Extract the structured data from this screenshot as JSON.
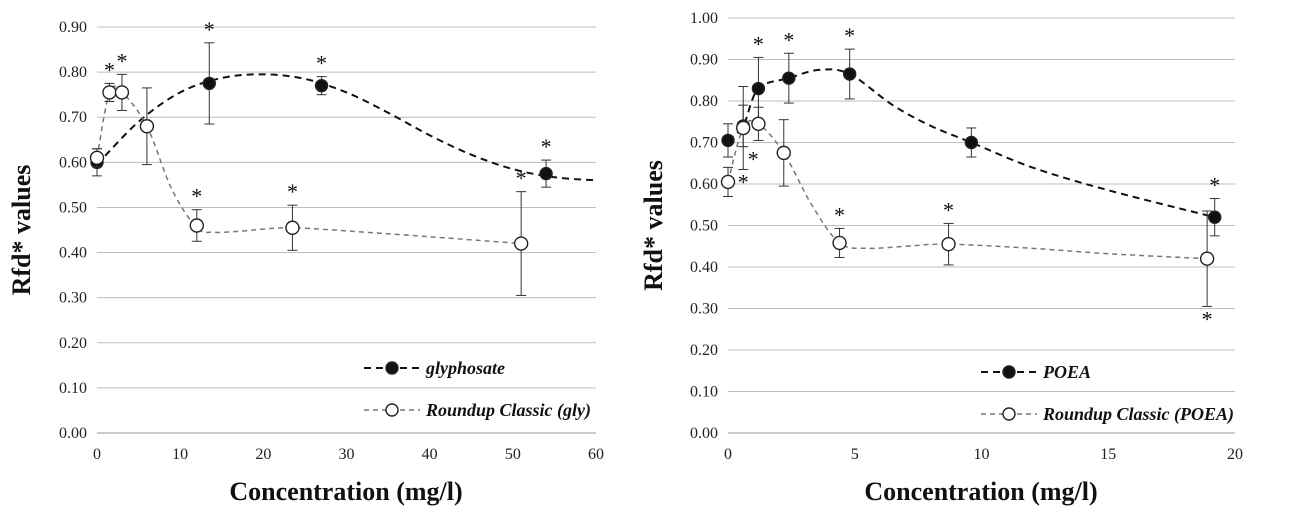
{
  "chart_data": [
    {
      "type": "scatter",
      "xlabel": "Concentration (mg/l)",
      "ylabel": "Rfd* values",
      "xlim": [
        0,
        60
      ],
      "ylim": [
        0,
        0.9
      ],
      "x_ticks": [
        "0",
        "10",
        "20",
        "30",
        "40",
        "50",
        "60"
      ],
      "y_ticks": [
        "0.00",
        "0.10",
        "0.20",
        "0.30",
        "0.40",
        "0.50",
        "0.60",
        "0.70",
        "0.80",
        "0.90"
      ],
      "grid": true,
      "legend_position": "bottom-right",
      "series": [
        {
          "name": "glyphosate",
          "marker": "filled",
          "color": "#111111",
          "x": [
            0,
            13.5,
            27,
            54
          ],
          "y": [
            0.6,
            0.775,
            0.77,
            0.575
          ],
          "err": [
            0.03,
            0.09,
            0.02,
            0.03
          ],
          "significance": [
            "",
            "*",
            "*",
            "*"
          ],
          "curve_x": [
            0,
            5,
            10,
            15,
            20,
            25,
            30,
            35,
            40,
            45,
            50,
            55,
            60
          ],
          "curve_y": [
            0.595,
            0.69,
            0.755,
            0.787,
            0.795,
            0.785,
            0.755,
            0.71,
            0.66,
            0.617,
            0.585,
            0.567,
            0.56
          ]
        },
        {
          "name": "Roundup Classic (gly)",
          "marker": "open",
          "color": "#777777",
          "x": [
            0,
            1.5,
            3,
            6,
            12,
            23.5,
            51
          ],
          "y": [
            0.61,
            0.755,
            0.755,
            0.68,
            0.46,
            0.455,
            0.42
          ],
          "err": [
            0.02,
            0.02,
            0.04,
            0.085,
            0.035,
            0.05,
            0.115
          ],
          "significance": [
            "",
            "*",
            "*",
            "",
            "*",
            "*",
            "*"
          ],
          "curve_x": [
            0,
            1.5,
            3,
            6,
            9,
            12,
            14,
            17,
            20,
            23.5,
            30,
            40,
            51
          ],
          "curve_y": [
            0.61,
            0.755,
            0.755,
            0.68,
            0.54,
            0.455,
            0.445,
            0.447,
            0.452,
            0.455,
            0.448,
            0.435,
            0.42
          ]
        }
      ]
    },
    {
      "type": "scatter",
      "xlabel": "Concentration (mg/l)",
      "ylabel": "Rfd* values",
      "xlim": [
        0,
        20
      ],
      "ylim": [
        0,
        1.0
      ],
      "x_ticks": [
        "0",
        "5",
        "10",
        "15",
        "20"
      ],
      "y_ticks": [
        "0.00",
        "0.10",
        "0.20",
        "0.30",
        "0.40",
        "0.50",
        "0.60",
        "0.70",
        "0.80",
        "0.90",
        "1.00"
      ],
      "grid": true,
      "legend_position": "bottom-right",
      "series": [
        {
          "name": "POEA",
          "marker": "filled",
          "color": "#111111",
          "x": [
            0,
            0.6,
            1.2,
            2.4,
            4.8,
            9.6,
            19.2
          ],
          "y": [
            0.705,
            0.74,
            0.83,
            0.855,
            0.865,
            0.7,
            0.52
          ],
          "err": [
            0.04,
            0.05,
            0.075,
            0.06,
            0.06,
            0.035,
            0.045
          ],
          "significance": [
            "",
            "*",
            "*",
            "*",
            "*",
            "",
            "*"
          ],
          "curve_x": [
            0,
            0.6,
            1.2,
            2.4,
            3.6,
            4.8,
            6.5,
            8,
            9.6,
            12,
            15,
            19.2
          ],
          "curve_y": [
            0.705,
            0.74,
            0.83,
            0.855,
            0.875,
            0.865,
            0.79,
            0.74,
            0.7,
            0.64,
            0.585,
            0.52
          ]
        },
        {
          "name": "Roundup Classic (POEA)",
          "marker": "open",
          "color": "#777777",
          "x": [
            0,
            0.6,
            1.2,
            2.2,
            4.4,
            8.7,
            18.9
          ],
          "y": [
            0.605,
            0.735,
            0.745,
            0.675,
            0.458,
            0.455,
            0.42
          ],
          "err": [
            0.035,
            0.1,
            0.04,
            0.08,
            0.035,
            0.05,
            0.115
          ],
          "significance": [
            "",
            "*",
            "*",
            "",
            "*",
            "*",
            "*"
          ],
          "curve_x": [
            0,
            0.6,
            1.2,
            2.2,
            3.3,
            4.4,
            5.5,
            7,
            8.7,
            12,
            15,
            18.9
          ],
          "curve_y": [
            0.605,
            0.735,
            0.745,
            0.675,
            0.55,
            0.458,
            0.445,
            0.45,
            0.455,
            0.445,
            0.432,
            0.42
          ]
        }
      ]
    }
  ]
}
